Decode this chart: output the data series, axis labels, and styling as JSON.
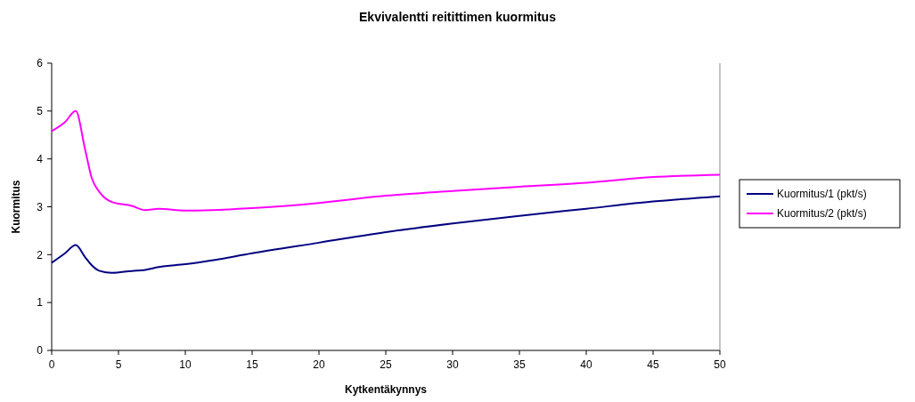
{
  "chart_data": {
    "type": "line",
    "title": "Ekvivalentti reitittimen kuormitus",
    "xlabel": "Kytkentäkynnys",
    "ylabel": "Kuormitus",
    "xlim": [
      0,
      50
    ],
    "xticks": [
      0,
      5,
      10,
      15,
      20,
      25,
      30,
      35,
      40,
      45,
      50
    ],
    "ylim": [
      0,
      6
    ],
    "yticks": [
      0,
      1,
      2,
      3,
      4,
      5,
      6
    ],
    "legend": "right",
    "grid": false,
    "x": [
      0,
      1,
      1.8,
      2.5,
      3,
      3.6,
      4.5,
      6,
      7,
      8,
      10,
      12,
      15,
      20,
      25,
      30,
      35,
      40,
      45,
      50
    ],
    "series": [
      {
        "name": "Kuormitus/1 (pkt/s)",
        "color": "#000080",
        "values": [
          1.83,
          2.03,
          2.2,
          1.95,
          1.78,
          1.66,
          1.62,
          1.66,
          1.68,
          1.74,
          1.8,
          1.88,
          2.03,
          2.25,
          2.47,
          2.65,
          2.81,
          2.96,
          3.11,
          3.22
        ]
      },
      {
        "name": "Kuormitus/2 (pkt/s)",
        "color": "#ff00ff",
        "values": [
          4.58,
          4.77,
          5.0,
          4.2,
          3.6,
          3.3,
          3.1,
          3.02,
          2.93,
          2.96,
          2.92,
          2.93,
          2.97,
          3.08,
          3.23,
          3.33,
          3.42,
          3.5,
          3.62,
          3.67
        ]
      }
    ]
  }
}
